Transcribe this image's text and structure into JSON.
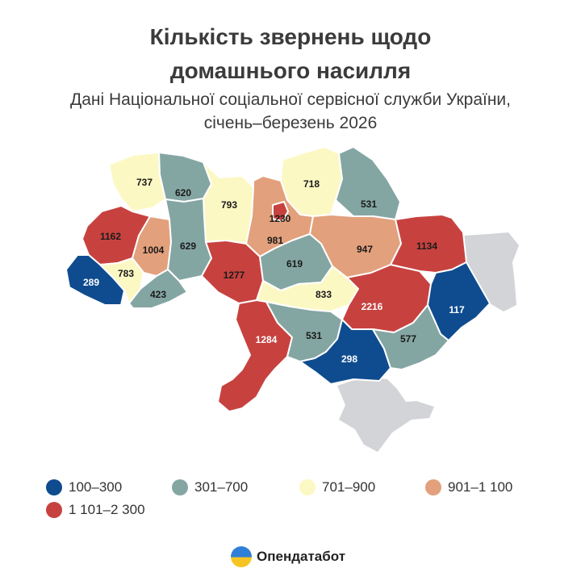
{
  "title_line1": "Кількість звернень щодо",
  "title_line2": "домашнього насилля",
  "subtitle_line1": "Дані Національної соціальної сервісної служби України,",
  "subtitle_line2": "січень–березень 2026",
  "colors": {
    "c1": "#0f4c8f",
    "c2": "#84a6a3",
    "c3": "#fcf8c4",
    "c4": "#e2a07c",
    "c5": "#c7423f",
    "occupied": "#d3d4d7"
  },
  "legend": [
    {
      "label": "100–300",
      "color": "#0f4c8f"
    },
    {
      "label": "301–700",
      "color": "#84a6a3"
    },
    {
      "label": "701–900",
      "color": "#fcf8c4"
    },
    {
      "label": "901–1 100",
      "color": "#e2a07c"
    },
    {
      "label": "1 101–2 300",
      "color": "#c7423f"
    }
  ],
  "regions": [
    {
      "id": "volyn",
      "value": "737",
      "cls": "c3"
    },
    {
      "id": "rivne",
      "value": "620",
      "cls": "c2"
    },
    {
      "id": "zhytomyr",
      "value": "793",
      "cls": "c3"
    },
    {
      "id": "kyiv-oblast",
      "value": "981",
      "cls": "c4"
    },
    {
      "id": "kyiv-city",
      "value": "1230",
      "cls": "c5"
    },
    {
      "id": "chernihiv",
      "value": "718",
      "cls": "c3"
    },
    {
      "id": "sumy",
      "value": "531",
      "cls": "c2"
    },
    {
      "id": "lviv",
      "value": "1162",
      "cls": "c5"
    },
    {
      "id": "ternopil",
      "value": "1004",
      "cls": "c4"
    },
    {
      "id": "khmelnytskyi",
      "value": "629",
      "cls": "c2"
    },
    {
      "id": "vinnytsia",
      "value": "1277",
      "cls": "c5"
    },
    {
      "id": "cherkasy",
      "value": "619",
      "cls": "c2"
    },
    {
      "id": "poltava",
      "value": "947",
      "cls": "c4"
    },
    {
      "id": "kharkiv",
      "value": "1134",
      "cls": "c5"
    },
    {
      "id": "zakarpattia",
      "value": "289",
      "cls": "c1"
    },
    {
      "id": "ivano-frankivsk",
      "value": "783",
      "cls": "c3"
    },
    {
      "id": "chernivtsi",
      "value": "423",
      "cls": "c2"
    },
    {
      "id": "kirovohrad",
      "value": "833",
      "cls": "c3"
    },
    {
      "id": "dnipropetrovsk",
      "value": "2216",
      "cls": "c5"
    },
    {
      "id": "donetsk",
      "value": "117",
      "cls": "c1"
    },
    {
      "id": "odesa",
      "value": "1284",
      "cls": "c5"
    },
    {
      "id": "mykolaiv",
      "value": "531",
      "cls": "c2"
    },
    {
      "id": "kherson",
      "value": "298",
      "cls": "c1"
    },
    {
      "id": "zaporizhzhia",
      "value": "577",
      "cls": "c2"
    }
  ],
  "brand": "Опендатабот"
}
